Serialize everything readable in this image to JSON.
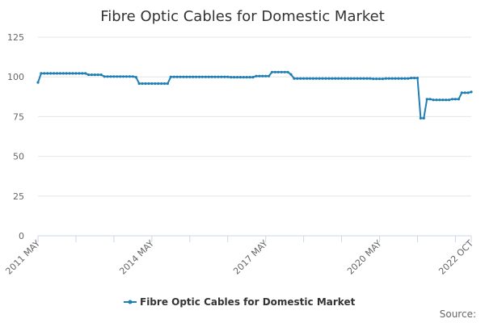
{
  "chart_data": {
    "type": "line",
    "title": "Fibre Optic Cables for Domestic Market",
    "ylim": [
      0,
      125
    ],
    "y_ticks": [
      "0",
      "25",
      "50",
      "75",
      "100",
      "125"
    ],
    "x_range": [
      "2011-05",
      "2022-10"
    ],
    "x_tick_labels": [
      {
        "date": "2011-05",
        "label": "2011 MAY"
      },
      {
        "date": "2014-05",
        "label": "2014 MAY"
      },
      {
        "date": "2017-05",
        "label": "2017 MAY"
      },
      {
        "date": "2020-05",
        "label": "2020 MAY"
      },
      {
        "date": "2022-10",
        "label": "2022 OCT"
      }
    ],
    "grid": true,
    "legend": "bottom-center",
    "series": [
      {
        "name": "Fibre Optic Cables for Domestic Market",
        "color": "#1f7fb4",
        "points": [
          [
            "2011-05",
            96.5
          ],
          [
            "2011-06",
            102.2
          ],
          [
            "2011-07",
            102.2
          ],
          [
            "2011-08",
            102.2
          ],
          [
            "2011-09",
            102.2
          ],
          [
            "2011-10",
            102.2
          ],
          [
            "2011-11",
            102.2
          ],
          [
            "2011-12",
            102.2
          ],
          [
            "2012-01",
            102.2
          ],
          [
            "2012-02",
            102.2
          ],
          [
            "2012-03",
            102.2
          ],
          [
            "2012-04",
            102.2
          ],
          [
            "2012-05",
            102.2
          ],
          [
            "2012-06",
            102.2
          ],
          [
            "2012-07",
            102.2
          ],
          [
            "2012-08",
            102.2
          ],
          [
            "2012-09",
            101.3
          ],
          [
            "2012-10",
            101.3
          ],
          [
            "2012-11",
            101.3
          ],
          [
            "2012-12",
            101.3
          ],
          [
            "2013-01",
            101.3
          ],
          [
            "2013-02",
            100.2
          ],
          [
            "2013-03",
            100.2
          ],
          [
            "2013-04",
            100.2
          ],
          [
            "2013-05",
            100.2
          ],
          [
            "2013-06",
            100.2
          ],
          [
            "2013-07",
            100.2
          ],
          [
            "2013-08",
            100.2
          ],
          [
            "2013-09",
            100.2
          ],
          [
            "2013-10",
            100.2
          ],
          [
            "2013-11",
            100.2
          ],
          [
            "2013-12",
            99.8
          ],
          [
            "2014-01",
            95.8
          ],
          [
            "2014-02",
            95.8
          ],
          [
            "2014-03",
            95.8
          ],
          [
            "2014-04",
            95.8
          ],
          [
            "2014-05",
            95.8
          ],
          [
            "2014-06",
            95.8
          ],
          [
            "2014-07",
            95.8
          ],
          [
            "2014-08",
            95.8
          ],
          [
            "2014-09",
            95.8
          ],
          [
            "2014-10",
            95.8
          ],
          [
            "2014-11",
            100.0
          ],
          [
            "2014-12",
            100.0
          ],
          [
            "2015-01",
            100.0
          ],
          [
            "2015-02",
            100.0
          ],
          [
            "2015-03",
            100.0
          ],
          [
            "2015-04",
            100.0
          ],
          [
            "2015-05",
            100.0
          ],
          [
            "2015-06",
            100.0
          ],
          [
            "2015-07",
            100.0
          ],
          [
            "2015-08",
            100.0
          ],
          [
            "2015-09",
            100.0
          ],
          [
            "2015-10",
            100.0
          ],
          [
            "2015-11",
            100.0
          ],
          [
            "2015-12",
            100.0
          ],
          [
            "2016-01",
            100.0
          ],
          [
            "2016-02",
            100.0
          ],
          [
            "2016-03",
            100.0
          ],
          [
            "2016-04",
            100.0
          ],
          [
            "2016-05",
            100.0
          ],
          [
            "2016-06",
            99.8
          ],
          [
            "2016-07",
            99.8
          ],
          [
            "2016-08",
            99.8
          ],
          [
            "2016-09",
            99.8
          ],
          [
            "2016-10",
            99.8
          ],
          [
            "2016-11",
            99.8
          ],
          [
            "2016-12",
            99.8
          ],
          [
            "2017-01",
            99.8
          ],
          [
            "2017-02",
            100.5
          ],
          [
            "2017-03",
            100.5
          ],
          [
            "2017-04",
            100.5
          ],
          [
            "2017-05",
            100.5
          ],
          [
            "2017-06",
            100.5
          ],
          [
            "2017-07",
            103.0
          ],
          [
            "2017-08",
            103.0
          ],
          [
            "2017-09",
            103.0
          ],
          [
            "2017-10",
            103.0
          ],
          [
            "2017-11",
            103.0
          ],
          [
            "2017-12",
            103.0
          ],
          [
            "2018-01",
            101.5
          ],
          [
            "2018-02",
            99.0
          ],
          [
            "2018-03",
            99.0
          ],
          [
            "2018-04",
            99.0
          ],
          [
            "2018-05",
            99.0
          ],
          [
            "2018-06",
            99.0
          ],
          [
            "2018-07",
            99.0
          ],
          [
            "2018-08",
            99.0
          ],
          [
            "2018-09",
            99.0
          ],
          [
            "2018-10",
            99.0
          ],
          [
            "2018-11",
            99.0
          ],
          [
            "2018-12",
            99.0
          ],
          [
            "2019-01",
            99.0
          ],
          [
            "2019-02",
            99.0
          ],
          [
            "2019-03",
            99.0
          ],
          [
            "2019-04",
            99.0
          ],
          [
            "2019-05",
            99.0
          ],
          [
            "2019-06",
            99.0
          ],
          [
            "2019-07",
            99.0
          ],
          [
            "2019-08",
            99.0
          ],
          [
            "2019-09",
            99.0
          ],
          [
            "2019-10",
            99.0
          ],
          [
            "2019-11",
            99.0
          ],
          [
            "2019-12",
            99.0
          ],
          [
            "2020-01",
            99.0
          ],
          [
            "2020-02",
            99.0
          ],
          [
            "2020-03",
            98.8
          ],
          [
            "2020-04",
            98.8
          ],
          [
            "2020-05",
            98.8
          ],
          [
            "2020-06",
            98.8
          ],
          [
            "2020-07",
            99.0
          ],
          [
            "2020-08",
            99.0
          ],
          [
            "2020-09",
            99.0
          ],
          [
            "2020-10",
            99.0
          ],
          [
            "2020-11",
            99.0
          ],
          [
            "2020-12",
            99.0
          ],
          [
            "2021-01",
            99.0
          ],
          [
            "2021-02",
            99.0
          ],
          [
            "2021-03",
            99.3
          ],
          [
            "2021-04",
            99.3
          ],
          [
            "2021-05",
            99.3
          ],
          [
            "2021-06",
            74.0
          ],
          [
            "2021-07",
            74.0
          ],
          [
            "2021-08",
            86.0
          ],
          [
            "2021-09",
            86.0
          ],
          [
            "2021-10",
            85.5
          ],
          [
            "2021-11",
            85.5
          ],
          [
            "2021-12",
            85.5
          ],
          [
            "2022-01",
            85.5
          ],
          [
            "2022-02",
            85.5
          ],
          [
            "2022-03",
            85.5
          ],
          [
            "2022-04",
            86.0
          ],
          [
            "2022-05",
            86.0
          ],
          [
            "2022-06",
            86.0
          ],
          [
            "2022-07",
            90.0
          ],
          [
            "2022-08",
            90.0
          ],
          [
            "2022-09",
            90.0
          ],
          [
            "2022-10",
            90.5
          ]
        ]
      }
    ],
    "source_label": "Source:"
  }
}
